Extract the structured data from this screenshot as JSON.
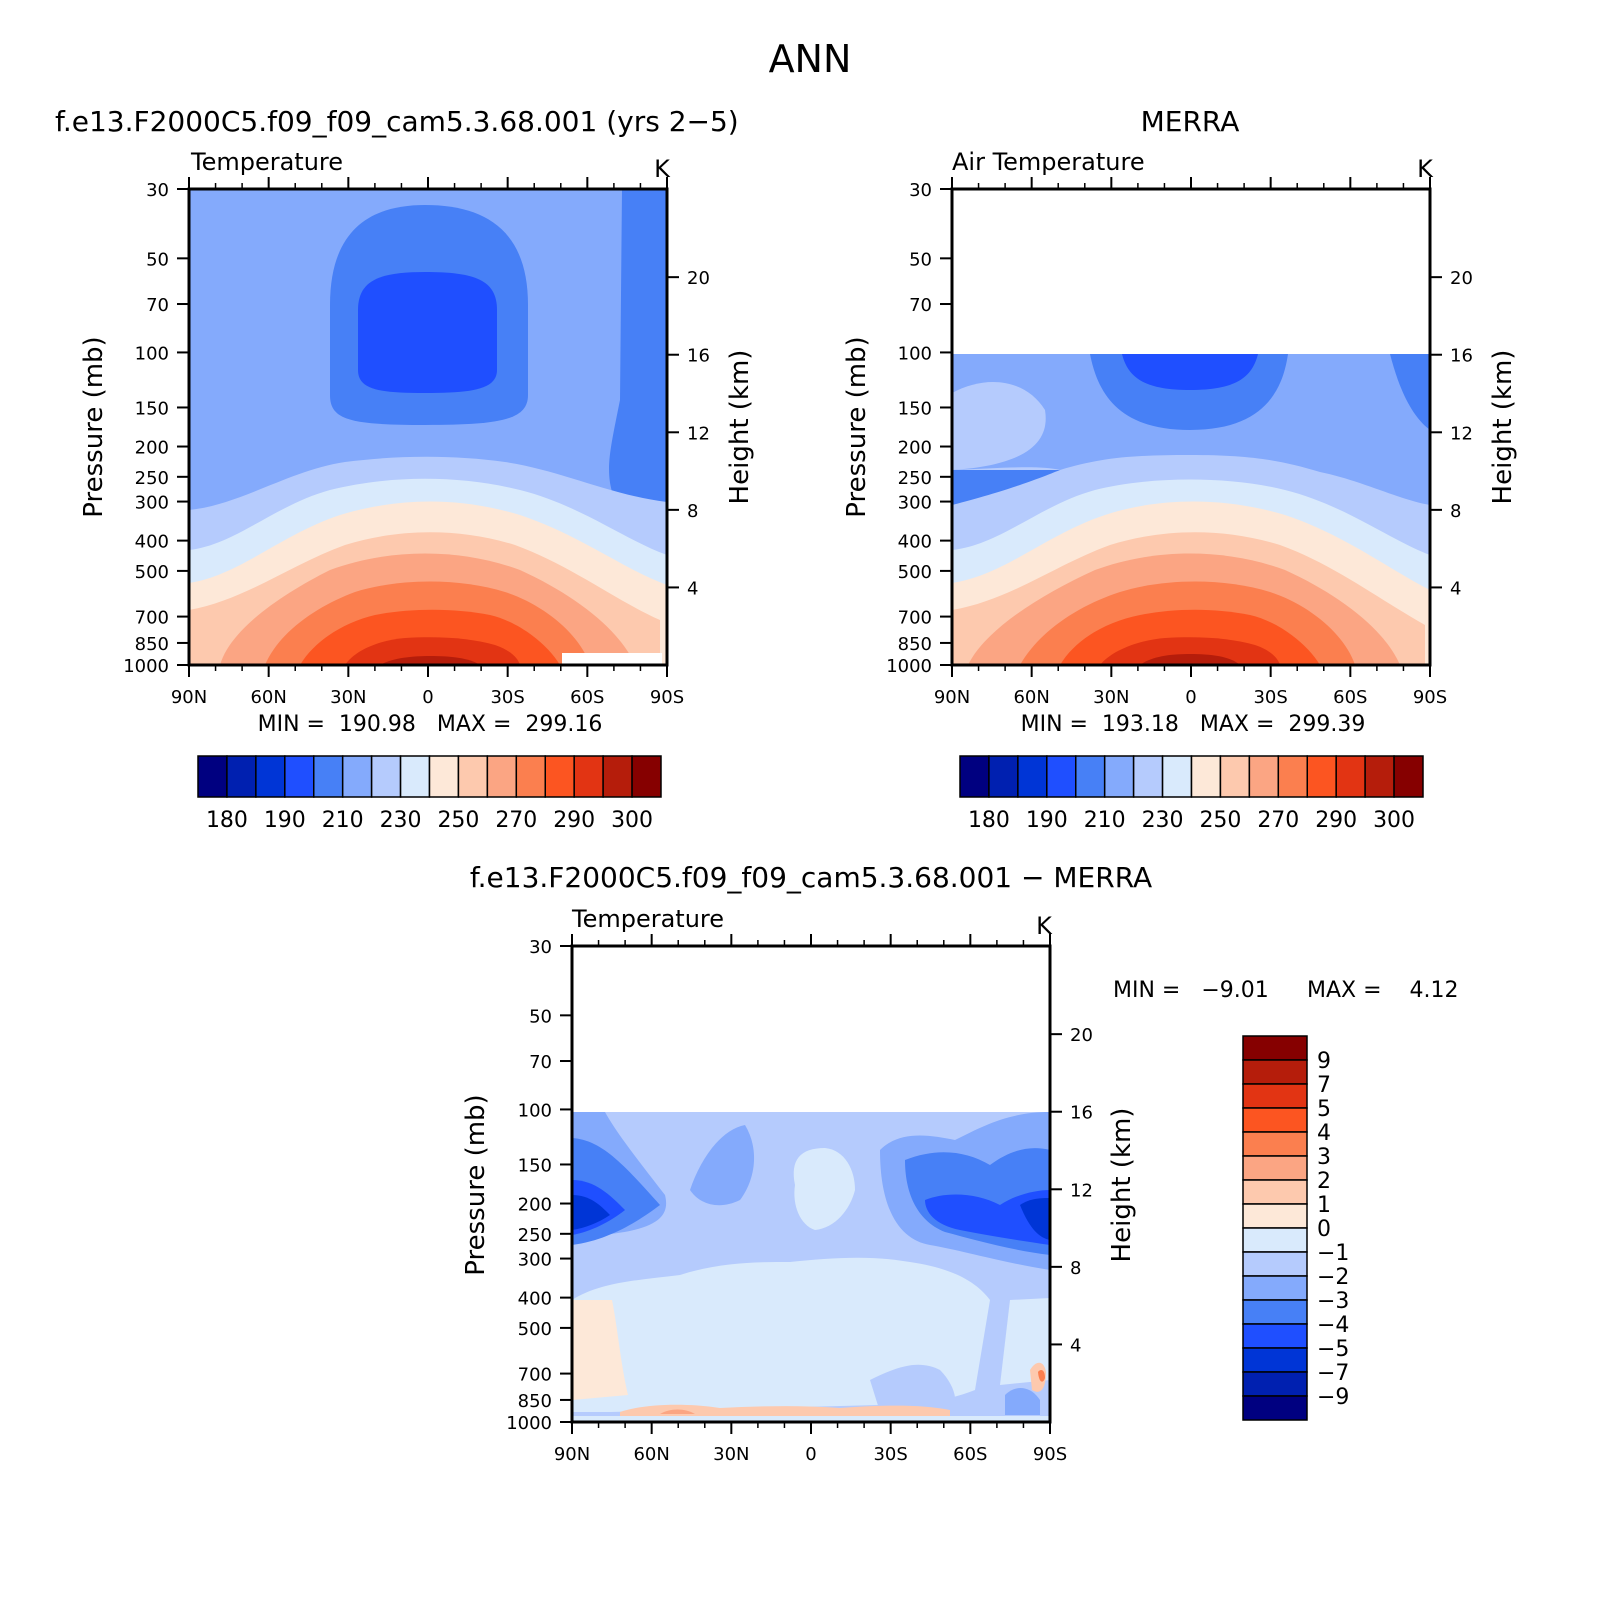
{
  "figure": {
    "title": "ANN"
  },
  "panels": [
    {
      "id": "model",
      "header": "f.e13.F2000C5.f09_f09_cam5.3.68.001 (yrs 2−5)",
      "var_label": "Temperature",
      "units": "K",
      "stats": "MIN =  190.98   MAX =  299.16"
    },
    {
      "id": "obs",
      "header": "MERRA",
      "var_label": "Air Temperature",
      "units": "K",
      "stats": "MIN =  193.18   MAX =  299.39"
    },
    {
      "id": "diff",
      "header": "f.e13.F2000C5.f09_f09_cam5.3.68.001 − MERRA",
      "var_label": "Temperature",
      "units": "K",
      "stats_min": "MIN =   −9.01",
      "stats_max": "MAX =    4.12"
    }
  ],
  "axes": {
    "ylabel": "Pressure (mb)",
    "ylabel2": "Height (km)",
    "pressure_ticks": [
      30,
      50,
      70,
      100,
      150,
      200,
      250,
      300,
      400,
      500,
      700,
      850,
      1000
    ],
    "pressure_tick_labels": [
      "30",
      "50",
      "70",
      "100",
      "150",
      "200",
      "250",
      "300",
      "400",
      "500",
      "700",
      "850",
      "1000"
    ],
    "height_ticks_km": [
      4,
      8,
      12,
      16,
      20
    ],
    "height_tick_labels": [
      "4",
      "8",
      "12",
      "16",
      "20"
    ],
    "lat_ticks": [
      90,
      60,
      30,
      0,
      -30,
      -60,
      -90
    ],
    "lat_tick_labels": [
      "90N",
      "60N",
      "30N",
      "0",
      "30S",
      "60S",
      "90S"
    ],
    "yscale": "log"
  },
  "colorbars": {
    "temperature": {
      "colors": [
        "#000080",
        "#0020b0",
        "#0035d6",
        "#1f4fff",
        "#4780f6",
        "#84aafc",
        "#b5cbfd",
        "#d9eafc",
        "#fde8d8",
        "#fdc9ae",
        "#fba583",
        "#fb7f4f",
        "#fc5521",
        "#e23413",
        "#b51d0b",
        "#860000"
      ],
      "labels": [
        "180",
        "190",
        "210",
        "230",
        "250",
        "270",
        "290",
        "300"
      ],
      "orientation": "horizontal"
    },
    "difference": {
      "colors": [
        "#000080",
        "#0020b0",
        "#0035d6",
        "#1f4fff",
        "#4780f6",
        "#84aafc",
        "#b5cbfd",
        "#d9eafc",
        "#fde8d8",
        "#fdc9ae",
        "#fba583",
        "#fb7f4f",
        "#fc5521",
        "#e23413",
        "#b51d0b",
        "#860000"
      ],
      "labels": [
        "9",
        "7",
        "5",
        "4",
        "3",
        "2",
        "1",
        "0",
        "−1",
        "−2",
        "−3",
        "−4",
        "−5",
        "−7",
        "−9"
      ],
      "orientation": "vertical"
    }
  },
  "chart_data": [
    {
      "type": "heatmap",
      "title": "f.e13.F2000C5.f09_f09_cam5.3.68.001 (yrs 2−5)",
      "xlabel": "",
      "ylabel": "Pressure (mb)",
      "x": [
        90,
        60,
        30,
        0,
        -30,
        -60,
        -90
      ],
      "xlim": [
        90,
        -90
      ],
      "ylim": [
        1000,
        30
      ],
      "min": 190.98,
      "max": 299.16
    },
    {
      "type": "heatmap",
      "title": "MERRA",
      "xlabel": "",
      "ylabel": "Pressure (mb)",
      "x": [
        90,
        60,
        30,
        0,
        -30,
        -60,
        -90
      ],
      "xlim": [
        90,
        -90
      ],
      "ylim": [
        1000,
        30
      ],
      "data_top_pressure": 100,
      "min": 193.18,
      "max": 299.39
    },
    {
      "type": "heatmap",
      "title": "f.e13.F2000C5.f09_f09_cam5.3.68.001 − MERRA",
      "xlabel": "",
      "ylabel": "Pressure (mb)",
      "x": [
        90,
        60,
        30,
        0,
        -30,
        -60,
        -90
      ],
      "xlim": [
        90,
        -90
      ],
      "ylim": [
        1000,
        30
      ],
      "data_top_pressure": 100,
      "min": -9.01,
      "max": 4.12
    }
  ]
}
